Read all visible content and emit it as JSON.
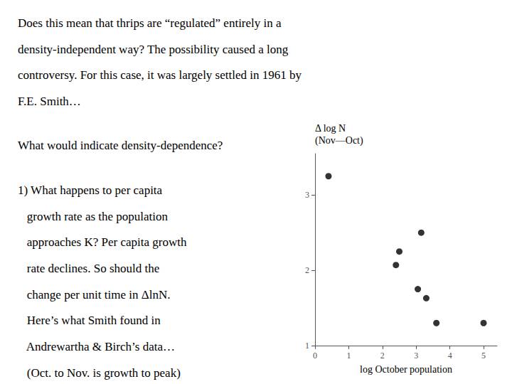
{
  "chart_data": {
    "type": "scatter",
    "annotations": [
      "Does this mean that thrips are “regulated” entirely in a",
      "density-independent way? The possibility caused a long",
      "controversy. For this case, it was largely settled in 1961 by",
      "F.E. Smith…",
      "What would indicate density-dependence?",
      "1) What happens to per capita",
      "   growth rate as the population",
      "   approaches K? Per capita growth",
      "   rate declines. So should the",
      "   change per unit time in ΔlnN.",
      "   Here’s what Smith found in",
      "   Andrewartha & Birch’s data…",
      "   (Oct. to Nov. is growth to peak)"
    ],
    "x": [
      0.4,
      2.4,
      2.5,
      3.05,
      3.15,
      3.3,
      3.6,
      5.0
    ],
    "values": [
      3.25,
      2.07,
      2.25,
      1.75,
      2.5,
      1.63,
      1.3,
      1.3
    ],
    "color": "black",
    "xlabel": "log October population",
    "ylabel": "Δ log N\n(Nov—Oct)",
    "xlim": [
      0,
      5.4
    ],
    "ylim": [
      1.0,
      3.55
    ],
    "xticks": [
      0,
      1,
      2,
      3,
      4,
      5
    ],
    "yticks": [
      1,
      2,
      3
    ],
    "grid": false
  }
}
